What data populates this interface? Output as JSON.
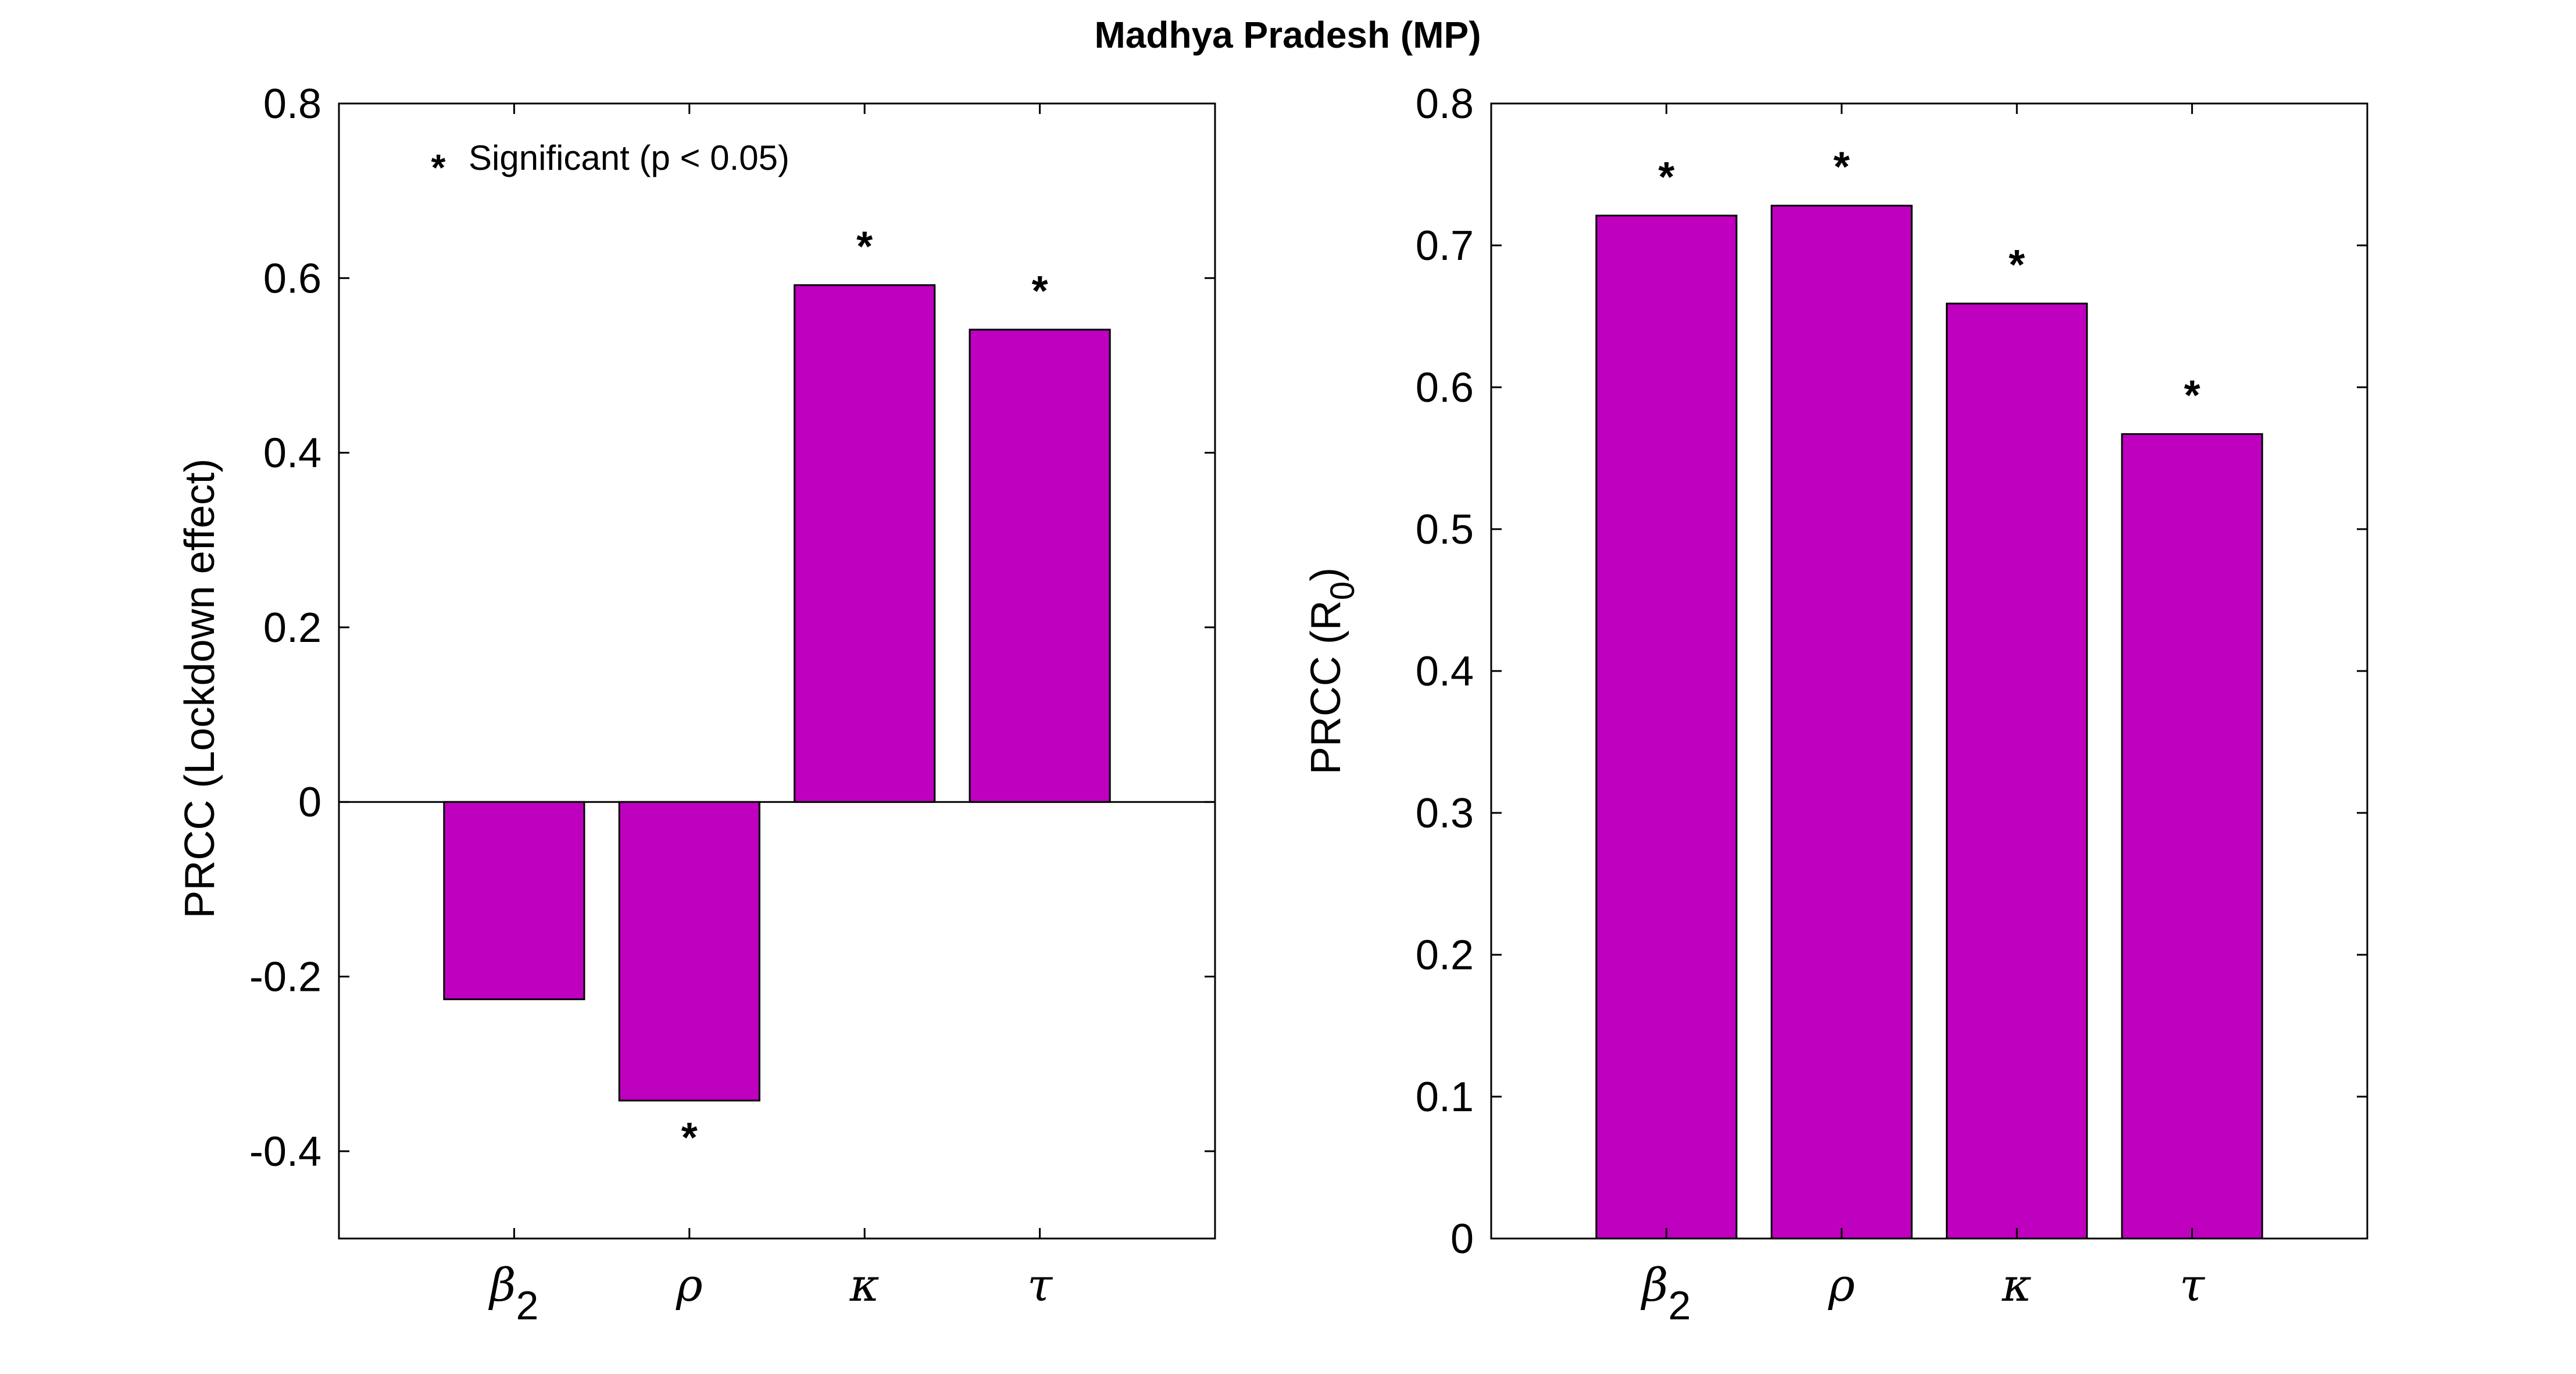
{
  "title": "Madhya Pradesh (MP)",
  "colors": {
    "bar": "#BF00BF",
    "axis": "#000000"
  },
  "legend": {
    "marker": "*",
    "text": "Significant (p < 0.05)",
    "placement": "top-left"
  },
  "chart_data": [
    {
      "type": "bar",
      "ylabel": "PRCC (Lockdown effect)",
      "xlabel": "",
      "ylim": [
        -0.5,
        0.8
      ],
      "yticks": [
        -0.4,
        -0.2,
        0,
        0.2,
        0.4,
        0.6,
        0.8
      ],
      "ytick_labels": [
        "-0.4",
        "-0.2",
        "0",
        "0.2",
        "0.4",
        "0.6",
        "0.8"
      ],
      "categories": [
        {
          "base": "β",
          "sub": "2"
        },
        {
          "base": "ρ",
          "sub": ""
        },
        {
          "base": "κ",
          "sub": ""
        },
        {
          "base": "τ",
          "sub": ""
        }
      ],
      "values": [
        -0.226,
        -0.342,
        0.592,
        0.541
      ],
      "significant": [
        false,
        true,
        true,
        true
      ],
      "zero_line": true
    },
    {
      "type": "bar",
      "ylabel": "PRCC (R",
      "ylabel_sub": "0",
      "ylabel_tail": ")",
      "xlabel": "",
      "ylim": [
        0,
        0.8
      ],
      "yticks": [
        0,
        0.1,
        0.2,
        0.3,
        0.4,
        0.5,
        0.6,
        0.7,
        0.8
      ],
      "ytick_labels": [
        "0",
        "0.1",
        "0.2",
        "0.3",
        "0.4",
        "0.5",
        "0.6",
        "0.7",
        "0.8"
      ],
      "categories": [
        {
          "base": "β",
          "sub": "2"
        },
        {
          "base": "ρ",
          "sub": ""
        },
        {
          "base": "κ",
          "sub": ""
        },
        {
          "base": "τ",
          "sub": ""
        }
      ],
      "values": [
        0.721,
        0.728,
        0.659,
        0.567
      ],
      "significant": [
        true,
        true,
        true,
        true
      ],
      "zero_line": false
    }
  ]
}
